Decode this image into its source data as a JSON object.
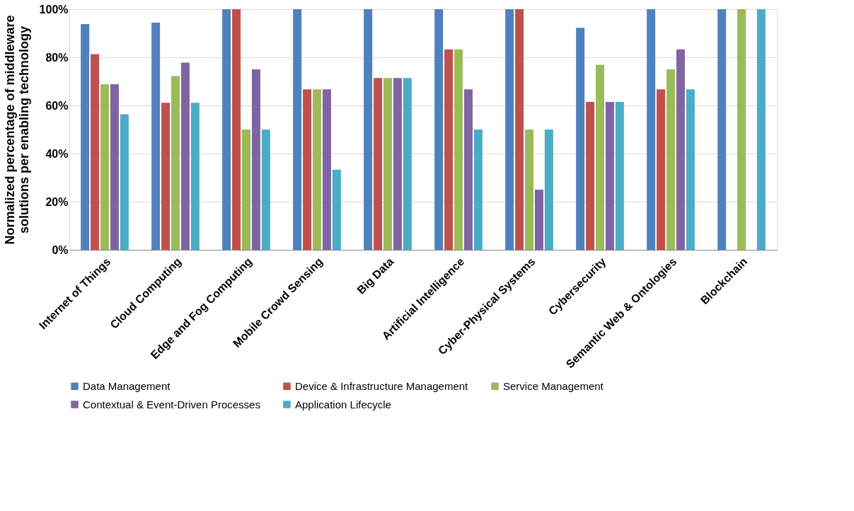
{
  "chart_data": {
    "type": "bar",
    "ylabel": "Normalized percentage of middleware solutions  per enabling technology",
    "categories": [
      "Internet of Things",
      "Cloud Computing",
      "Edge and Fog Computing",
      "Mobile Crowd Sensing",
      "Big Data",
      "Artificial Intelligence",
      "Cyber-Physical Systems",
      "Cybersecurity",
      "Semantic Web & Ontologies",
      "Blockchain"
    ],
    "series": [
      {
        "name": "Data Management",
        "color": "#4f81bd",
        "values": [
          93.8,
          94.4,
          100,
          100,
          100,
          100,
          100,
          92.3,
          100,
          100
        ]
      },
      {
        "name": "Device & Infrastructure Management",
        "color": "#c0504d",
        "values": [
          81.3,
          61.1,
          100,
          66.7,
          71.4,
          83.3,
          100,
          61.5,
          66.7,
          0
        ]
      },
      {
        "name": "Service Management",
        "color": "#9bbb59",
        "values": [
          68.8,
          72.2,
          50,
          66.7,
          71.4,
          83.3,
          50,
          76.9,
          75,
          100
        ]
      },
      {
        "name": "Contextual & Event-Driven Processes",
        "color": "#8064a2",
        "values": [
          68.8,
          77.8,
          75,
          66.7,
          71.4,
          66.7,
          25,
          61.5,
          83.3,
          0
        ]
      },
      {
        "name": "Application Lifecycle",
        "color": "#4bacc6",
        "values": [
          56.3,
          61.1,
          50,
          33.3,
          71.4,
          50,
          50,
          61.5,
          66.7,
          100
        ]
      }
    ],
    "ylim": [
      0,
      100
    ],
    "yticks": [
      {
        "value": 0,
        "label": "0%"
      },
      {
        "value": 20,
        "label": "20%"
      },
      {
        "value": 40,
        "label": "40%"
      },
      {
        "value": 60,
        "label": "60%"
      },
      {
        "value": 80,
        "label": "80%"
      },
      {
        "value": 100,
        "label": "100%"
      }
    ],
    "grid": "y",
    "legend": "bottom"
  }
}
